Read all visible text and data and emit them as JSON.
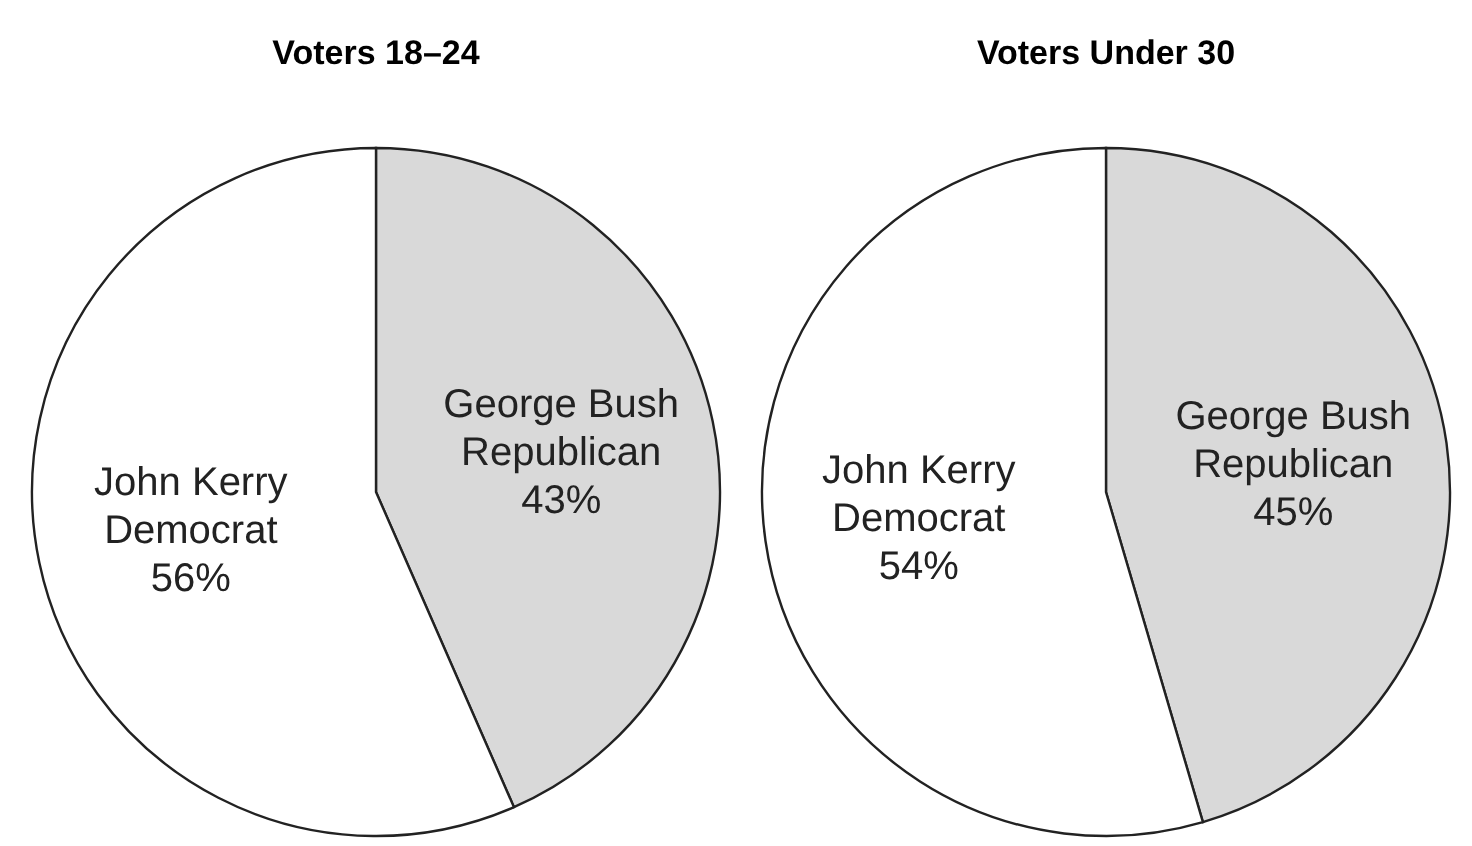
{
  "chart_data": [
    {
      "type": "pie",
      "title": "Voters 18–24",
      "categories": [
        "George Bush\nRepublican",
        "John Kerry\nDemocrat"
      ],
      "values": [
        43,
        56
      ],
      "value_labels": [
        "43%",
        "56%"
      ],
      "colors": [
        "#d9d9d9",
        "#ffffff"
      ]
    },
    {
      "type": "pie",
      "title": "Voters Under 30",
      "categories": [
        "George Bush\nRepublican",
        "John Kerry\nDemocrat"
      ],
      "values": [
        45,
        54
      ],
      "value_labels": [
        "45%",
        "54%"
      ],
      "colors": [
        "#d9d9d9",
        "#ffffff"
      ]
    }
  ]
}
